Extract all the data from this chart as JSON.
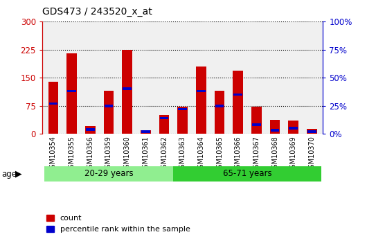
{
  "title": "GDS473 / 243520_x_at",
  "categories": [
    "GSM10354",
    "GSM10355",
    "GSM10356",
    "GSM10359",
    "GSM10360",
    "GSM10361",
    "GSM10362",
    "GSM10363",
    "GSM10364",
    "GSM10365",
    "GSM10366",
    "GSM10367",
    "GSM10368",
    "GSM10369",
    "GSM10370"
  ],
  "count_values": [
    140,
    215,
    20,
    115,
    225,
    10,
    50,
    72,
    180,
    115,
    168,
    72,
    38,
    35,
    14
  ],
  "percentile_values": [
    27,
    38,
    4,
    25,
    40,
    2,
    14,
    22,
    38,
    25,
    35,
    8,
    3,
    5,
    2
  ],
  "count_color": "#cc0000",
  "percentile_color": "#0000cc",
  "ylim_left": [
    0,
    300
  ],
  "ylim_right": [
    0,
    100
  ],
  "yticks_left": [
    0,
    75,
    150,
    225,
    300
  ],
  "yticks_right": [
    0,
    25,
    50,
    75,
    100
  ],
  "ytick_labels_right": [
    "0%",
    "25%",
    "50%",
    "75%",
    "100%"
  ],
  "group1_label": "20-29 years",
  "group2_label": "65-71 years",
  "group1_indices": [
    0,
    6
  ],
  "group2_indices": [
    7,
    14
  ],
  "group1_color": "#90ee90",
  "group2_color": "#32cd32",
  "age_label": "age",
  "legend_count": "count",
  "legend_percentile": "percentile rank within the sample",
  "plot_bg_color": "#f0f0f0",
  "bar_width": 0.55
}
